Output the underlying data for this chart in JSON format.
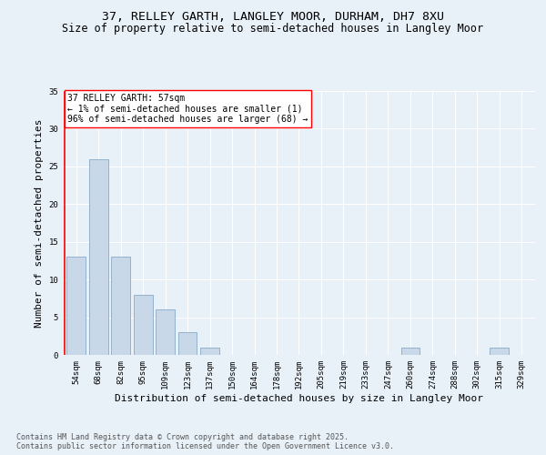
{
  "title_line1": "37, RELLEY GARTH, LANGLEY MOOR, DURHAM, DH7 8XU",
  "title_line2": "Size of property relative to semi-detached houses in Langley Moor",
  "xlabel": "Distribution of semi-detached houses by size in Langley Moor",
  "ylabel": "Number of semi-detached properties",
  "categories": [
    "54sqm",
    "68sqm",
    "82sqm",
    "95sqm",
    "109sqm",
    "123sqm",
    "137sqm",
    "150sqm",
    "164sqm",
    "178sqm",
    "192sqm",
    "205sqm",
    "219sqm",
    "233sqm",
    "247sqm",
    "260sqm",
    "274sqm",
    "288sqm",
    "302sqm",
    "315sqm",
    "329sqm"
  ],
  "values": [
    13,
    26,
    13,
    8,
    6,
    3,
    1,
    0,
    0,
    0,
    0,
    0,
    0,
    0,
    0,
    1,
    0,
    0,
    0,
    1,
    0
  ],
  "bar_color": "#c8d8e8",
  "bar_edge_color": "#8aaac8",
  "vline_color": "red",
  "annotation_text": "37 RELLEY GARTH: 57sqm\n← 1% of semi-detached houses are smaller (1)\n96% of semi-detached houses are larger (68) →",
  "annotation_box_color": "white",
  "annotation_box_edge": "red",
  "ylim": [
    0,
    35
  ],
  "yticks": [
    0,
    5,
    10,
    15,
    20,
    25,
    30,
    35
  ],
  "footer_text": "Contains HM Land Registry data © Crown copyright and database right 2025.\nContains public sector information licensed under the Open Government Licence v3.0.",
  "bg_color": "#e8f0f8",
  "plot_bg_color": "#e8f0f8",
  "title_fontsize": 9.5,
  "subtitle_fontsize": 8.5,
  "axis_label_fontsize": 8,
  "tick_fontsize": 6.5,
  "footer_fontsize": 6,
  "annotation_fontsize": 7
}
